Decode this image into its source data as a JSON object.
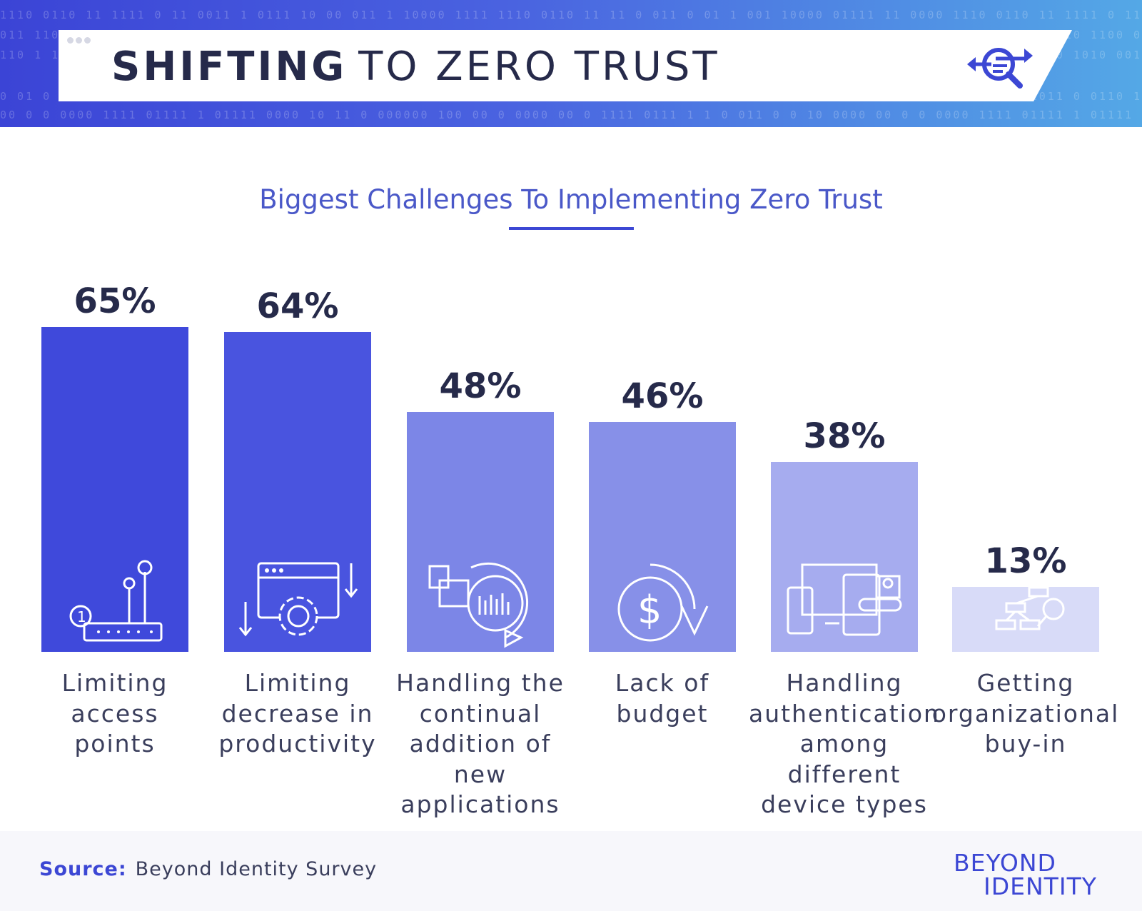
{
  "header": {
    "title_bold": "SHIFTING",
    "title_light": "TO ZERO TRUST",
    "binary_rows": [
      "1110 0110 11 1111 0 11 0011 1 0111 10 00 011 1 10000 1111 1110 0110 11 11 0 011 0 01 1 001 10000 01111 11 0000",
      "011 1100 0001 0110 1100 0011 110 1 0011 0000 110 1100 1 0 0111 000 1100 0110 1 0000 11 0111 1000 01101 0111",
      "110 1 1101 00 0110 1010 0011 1 001 10 1110 1001 0000 1110 0001 0 1010 1100 0110 0011 1001 1100 0 110 0000",
      "0 01 0 1 0001 110 1011 0 0110 1 0011 1100 0001 0111 0 00110 1110 01 1100 1001 1 0 1110 0001 0011 0000",
      "00 0 0 0000 1111 01111 1 01111 0000 10 11 0 000000 100 00 0 0000 00 0 1111 0111 1 1 0 011 0 0 10 0000"
    ]
  },
  "subtitle": "Biggest Challenges To Implementing Zero Trust",
  "colors": {
    "bar_colors": [
      "#3f49db",
      "#4954df",
      "#7c86e7",
      "#8790e8",
      "#a6acef",
      "#d8dbf8"
    ],
    "accent": "#3c47d4",
    "title_text": "#262a4a"
  },
  "chart_data": {
    "type": "bar",
    "title": "Biggest Challenges To Implementing Zero Trust",
    "categories": [
      "Limiting access points",
      "Limiting decrease in productivity",
      "Handling the continual addition of new applications",
      "Lack of budget",
      "Handling authentication among different device types",
      "Getting organizational buy-in"
    ],
    "category_lines": [
      [
        "Limiting",
        "access",
        "points"
      ],
      [
        "Limiting",
        "decrease in",
        "productivity"
      ],
      [
        "Handling the",
        "continual",
        "addition of new",
        "applications"
      ],
      [
        "Lack of",
        "budget"
      ],
      [
        "Handling",
        "authentication",
        "among different",
        "device types"
      ],
      [
        "Getting",
        "organizational",
        "buy-in"
      ]
    ],
    "values": [
      65,
      64,
      48,
      46,
      38,
      13
    ],
    "value_labels": [
      "65%",
      "64%",
      "48%",
      "46%",
      "38%",
      "13%"
    ],
    "icons": [
      "router-icon",
      "settings-window-icon",
      "app-refresh-icon",
      "dollar-refresh-icon",
      "devices-icon",
      "org-chart-search-icon"
    ],
    "ylim": [
      0,
      65
    ],
    "grid": false,
    "legend": "none"
  },
  "footer": {
    "source_label": "Source:",
    "source_text": "Beyond Identity Survey",
    "brand_line1": "BEYOND",
    "brand_line2": "IDENTITY"
  }
}
